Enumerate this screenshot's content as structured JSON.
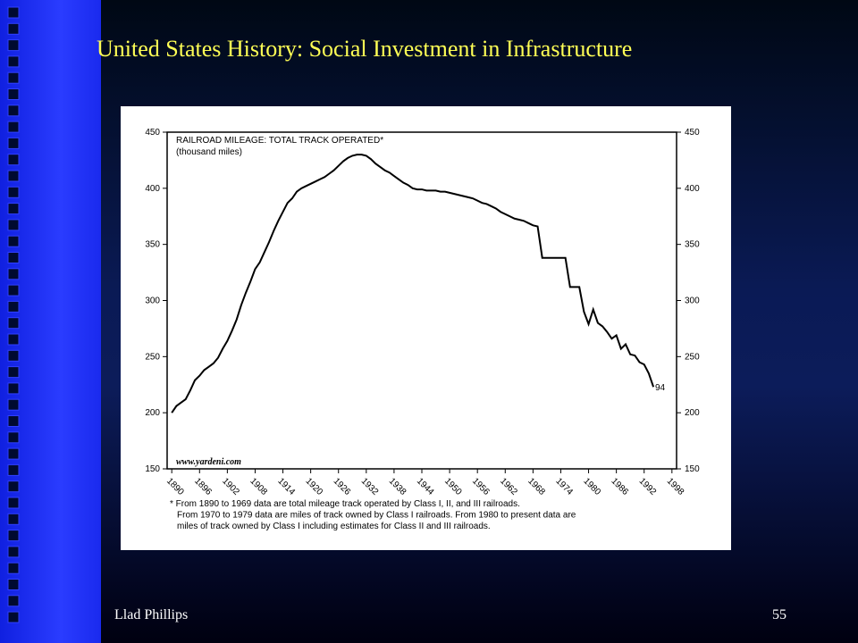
{
  "slide": {
    "title": "United States History: Social Investment in Infrastructure",
    "footer_left": "Llad Phillips",
    "page_number": "55"
  },
  "chart_data": {
    "type": "line",
    "title": "RAILROAD MILEAGE: TOTAL TRACK OPERATED*",
    "subtitle": "(thousand miles)",
    "source": "www.yardeni.com",
    "annotation": "94",
    "footnote": [
      "* From 1890 to 1969 data are total mileage track operated by Class I, II, and III railroads.",
      "From 1970 to 1979 data are miles of track owned by Class I railroads. From 1980 to present data are",
      "miles of track owned by Class I including estimates for Class II and III railroads."
    ],
    "x": [
      1890,
      1891,
      1892,
      1893,
      1894,
      1895,
      1896,
      1897,
      1898,
      1899,
      1900,
      1901,
      1902,
      1903,
      1904,
      1905,
      1906,
      1907,
      1908,
      1909,
      1910,
      1911,
      1912,
      1913,
      1914,
      1915,
      1916,
      1917,
      1918,
      1919,
      1920,
      1921,
      1922,
      1923,
      1924,
      1925,
      1926,
      1927,
      1928,
      1929,
      1930,
      1931,
      1932,
      1933,
      1934,
      1935,
      1936,
      1937,
      1938,
      1939,
      1940,
      1941,
      1942,
      1943,
      1944,
      1945,
      1946,
      1947,
      1948,
      1949,
      1950,
      1951,
      1952,
      1953,
      1954,
      1955,
      1956,
      1957,
      1958,
      1959,
      1960,
      1961,
      1962,
      1963,
      1964,
      1965,
      1966,
      1967,
      1968,
      1969,
      1970,
      1971,
      1972,
      1973,
      1974,
      1975,
      1976,
      1977,
      1978,
      1979,
      1980,
      1981,
      1982,
      1983,
      1984,
      1985,
      1986,
      1987,
      1988,
      1989,
      1990,
      1991,
      1992,
      1993,
      1994
    ],
    "values": [
      200,
      206,
      209,
      212,
      220,
      229,
      233,
      238,
      241,
      244,
      249,
      257,
      264,
      273,
      283,
      296,
      307,
      317,
      328,
      334,
      343,
      352,
      362,
      371,
      379,
      387,
      391,
      397,
      400,
      402,
      404,
      406,
      408,
      410,
      413,
      416,
      420,
      424,
      427,
      429,
      430,
      430,
      429,
      426,
      422,
      419,
      416,
      414,
      411,
      408,
      405,
      403,
      400,
      399,
      399,
      398,
      398,
      398,
      397,
      397,
      396,
      395,
      394,
      393,
      392,
      391,
      389,
      387,
      386,
      384,
      382,
      379,
      377,
      375,
      373,
      372,
      371,
      369,
      367,
      366,
      338,
      338,
      338,
      338,
      338,
      338,
      312,
      312,
      312,
      290,
      279,
      292,
      280,
      277,
      272,
      266,
      269,
      257,
      261,
      252,
      251,
      245,
      243,
      235,
      223
    ],
    "color": "#000000",
    "xlim": [
      1889,
      1999
    ],
    "xticks": [
      1890,
      1896,
      1902,
      1908,
      1914,
      1920,
      1926,
      1932,
      1938,
      1944,
      1950,
      1956,
      1962,
      1968,
      1974,
      1980,
      1986,
      1992,
      1998
    ],
    "ylim": [
      150,
      450
    ],
    "yticks": [
      150,
      200,
      250,
      300,
      350,
      400,
      450
    ],
    "y2lim": [
      150,
      450
    ],
    "y2ticks": [
      150,
      200,
      250,
      300,
      350,
      400,
      450
    ],
    "grid": false
  }
}
